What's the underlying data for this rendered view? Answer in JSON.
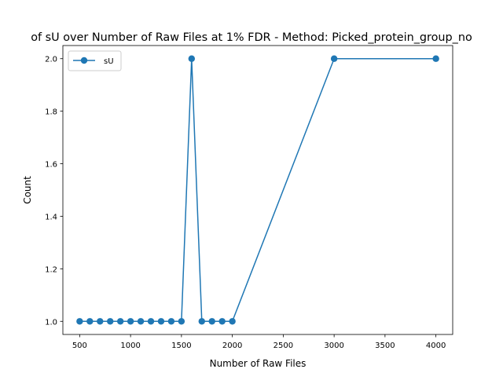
{
  "chart_data": {
    "type": "line",
    "title": "of sU over Number of Raw Files at 1% FDR - Method: Picked_protein_group_no",
    "xlabel": "Number of Raw Files",
    "ylabel": "Count",
    "xlim": [
      335,
      4165
    ],
    "ylim": [
      0.95,
      2.05
    ],
    "xticks": [
      500,
      1000,
      1500,
      2000,
      2500,
      3000,
      3500,
      4000
    ],
    "xtick_labels": [
      "500",
      "1000",
      "1500",
      "2000",
      "2500",
      "3000",
      "3500",
      "4000"
    ],
    "yticks": [
      1.0,
      1.2,
      1.4,
      1.6,
      1.8,
      2.0
    ],
    "ytick_labels": [
      "1.0",
      "1.2",
      "1.4",
      "1.6",
      "1.8",
      "2.0"
    ],
    "grid": false,
    "legend_position": "upper-left",
    "series": [
      {
        "name": "sU",
        "color": "#1f77b4",
        "marker": "circle",
        "x": [
          500,
          600,
          700,
          800,
          900,
          1000,
          1100,
          1200,
          1300,
          1400,
          1500,
          1600,
          1700,
          1800,
          1900,
          2000,
          3000,
          4000
        ],
        "y": [
          1,
          1,
          1,
          1,
          1,
          1,
          1,
          1,
          1,
          1,
          1,
          2,
          1,
          1,
          1,
          1,
          2,
          2
        ]
      }
    ]
  }
}
